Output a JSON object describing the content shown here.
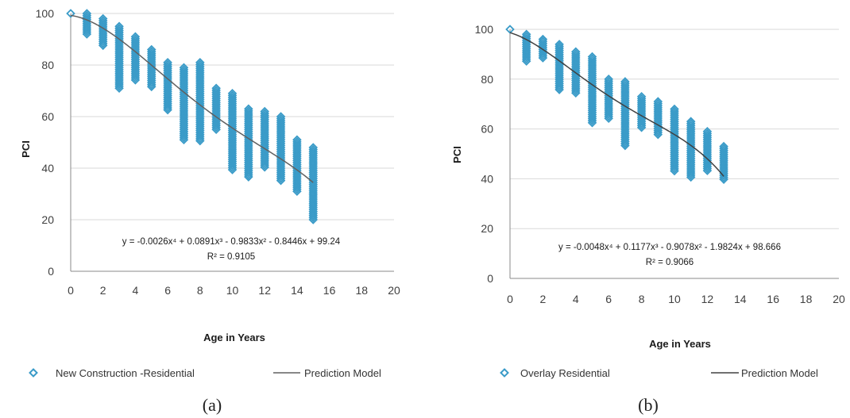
{
  "chart_data": [
    {
      "type": "scatter",
      "panel_label": "(a)",
      "xlabel": "Age in Years",
      "ylabel": "PCI",
      "xlim": [
        0,
        20
      ],
      "ylim": [
        0,
        100
      ],
      "x_ticks": [
        0,
        2,
        4,
        6,
        8,
        10,
        12,
        14,
        16,
        18,
        20
      ],
      "y_ticks": [
        0,
        20,
        40,
        60,
        80,
        100
      ],
      "grid": "horizontal",
      "legend_position": "bottom",
      "marker_color": "#3a9bc8",
      "line_color": "#606060",
      "equation": "y = -0.0026x⁴ + 0.0891x³ - 0.9833x² - 0.8446x + 99.24",
      "r_squared": "R² = 0.9105",
      "series": [
        {
          "name": "New Construction -Residential",
          "kind": "scatter",
          "ranges": [
            {
              "x": 0,
              "min": 100,
              "max": 100
            },
            {
              "x": 1,
              "min": 92,
              "max": 100
            },
            {
              "x": 2,
              "min": 87,
              "max": 98
            },
            {
              "x": 3,
              "min": 71,
              "max": 95
            },
            {
              "x": 4,
              "min": 74,
              "max": 91
            },
            {
              "x": 5,
              "min": 71,
              "max": 86
            },
            {
              "x": 6,
              "min": 62,
              "max": 81
            },
            {
              "x": 7,
              "min": 51,
              "max": 79
            },
            {
              "x": 8,
              "min": 50,
              "max": 81
            },
            {
              "x": 9,
              "min": 55,
              "max": 71
            },
            {
              "x": 10,
              "min": 39,
              "max": 69
            },
            {
              "x": 11,
              "min": 36,
              "max": 63
            },
            {
              "x": 12,
              "min": 40,
              "max": 62
            },
            {
              "x": 13,
              "min": 35,
              "max": 60
            },
            {
              "x": 14,
              "min": 31,
              "max": 51
            },
            {
              "x": 15,
              "min": 20,
              "max": 48
            }
          ]
        },
        {
          "name": "Prediction Model",
          "kind": "line",
          "coefficients": [
            -0.0026,
            0.0891,
            -0.9833,
            -0.8446,
            99.24
          ],
          "x_range": [
            0,
            15
          ]
        }
      ]
    },
    {
      "type": "scatter",
      "panel_label": "(b)",
      "xlabel": "Age in Years",
      "ylabel": "PCI",
      "xlim": [
        0,
        20
      ],
      "ylim": [
        0,
        100
      ],
      "x_ticks": [
        0,
        2,
        4,
        6,
        8,
        10,
        12,
        14,
        16,
        18,
        20
      ],
      "y_ticks": [
        0,
        20,
        40,
        60,
        80,
        100
      ],
      "grid": "horizontal",
      "legend_position": "bottom",
      "marker_color": "#3a9bc8",
      "line_color": "#404040",
      "equation": "y = -0.0048x⁴ + 0.1177x³ - 0.9078x² - 1.9824x + 98.666",
      "r_squared": "R² = 0.9066",
      "series": [
        {
          "name": "Overlay Residential",
          "kind": "scatter",
          "ranges": [
            {
              "x": 0,
              "min": 100,
              "max": 100
            },
            {
              "x": 1,
              "min": 87,
              "max": 98
            },
            {
              "x": 2,
              "min": 88,
              "max": 96
            },
            {
              "x": 3,
              "min": 75,
              "max": 94
            },
            {
              "x": 4,
              "min": 74,
              "max": 91
            },
            {
              "x": 5,
              "min": 62,
              "max": 89
            },
            {
              "x": 6,
              "min": 64,
              "max": 80
            },
            {
              "x": 7,
              "min": 53,
              "max": 79
            },
            {
              "x": 8,
              "min": 60,
              "max": 73
            },
            {
              "x": 9,
              "min": 57,
              "max": 71
            },
            {
              "x": 10,
              "min": 43,
              "max": 68
            },
            {
              "x": 11,
              "min": 40,
              "max": 63
            },
            {
              "x": 12,
              "min": 43,
              "max": 59
            },
            {
              "x": 13,
              "min": 39,
              "max": 53
            }
          ]
        },
        {
          "name": "Prediction Model",
          "kind": "line",
          "coefficients": [
            -0.0048,
            0.1177,
            -0.9078,
            -1.9824,
            98.666
          ],
          "x_range": [
            0,
            13
          ]
        }
      ]
    }
  ]
}
